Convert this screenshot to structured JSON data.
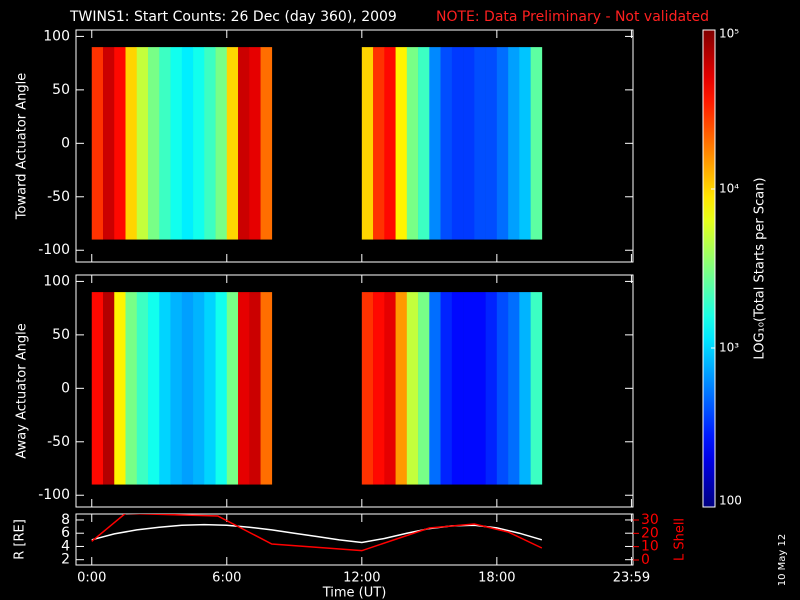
{
  "title": "TWINS1: Start Counts: 26 Dec (day 360), 2009",
  "note": "NOTE: Data Preliminary - Not validated",
  "footer_date": "10 May 12",
  "colorbar": {
    "label": "LOG₁₀(Total Starts per Scan)",
    "zlim": [
      100,
      100000
    ],
    "log": true,
    "colormap": "jet",
    "zticks": [
      {
        "value": 100000,
        "label": "10⁵"
      },
      {
        "value": 10000,
        "label": "10⁴"
      },
      {
        "value": 1000,
        "label": "10³"
      },
      100
    ]
  },
  "chart_data": [
    {
      "type": "heatmap",
      "ylabel": "Toward Actuator Angle",
      "xlim": [
        -0.7,
        24.05
      ],
      "ylim": [
        -111,
        106
      ],
      "yticks": [
        -100,
        -50,
        0,
        50,
        100
      ],
      "angle_range": [
        -90,
        90
      ],
      "segments": [
        {
          "start": 0,
          "end": 8,
          "values": [
            30000,
            60000,
            40000,
            10000,
            5000,
            3000,
            2000,
            1500,
            1200,
            1500,
            2000,
            3000,
            10000,
            60000,
            50000,
            20000
          ]
        },
        {
          "start": 12,
          "end": 20,
          "values": [
            10000,
            30000,
            40000,
            8000,
            3000,
            2000,
            600,
            400,
            350,
            350,
            400,
            400,
            500,
            700,
            900,
            2500
          ]
        }
      ]
    },
    {
      "type": "heatmap",
      "ylabel": "Away Actuator Angle",
      "xlim": [
        -0.7,
        24.05
      ],
      "ylim": [
        -111,
        106
      ],
      "yticks": [
        -100,
        -50,
        0,
        50,
        100
      ],
      "angle_range": [
        -90,
        90
      ],
      "segments": [
        {
          "start": 0,
          "end": 8,
          "values": [
            40000,
            70000,
            8000,
            3000,
            2000,
            1500,
            1000,
            800,
            700,
            800,
            1000,
            1500,
            3000,
            50000,
            60000,
            20000
          ]
        },
        {
          "start": 12,
          "end": 20,
          "values": [
            30000,
            40000,
            50000,
            15000,
            5000,
            3000,
            500,
            300,
            250,
            250,
            250,
            300,
            400,
            500,
            800,
            2000
          ]
        }
      ]
    },
    {
      "type": "line",
      "xlabel": "Time (UT)",
      "ylabel": "R [RE]",
      "y2label": "L Shell",
      "xlim": [
        -0.7,
        24.05
      ],
      "ylim": [
        1.2,
        8.9
      ],
      "y2lim": [
        -3.75,
        34.5
      ],
      "xticks": [
        {
          "value": 0,
          "label": "0:00"
        },
        {
          "value": 6,
          "label": "6:00"
        },
        {
          "value": 12,
          "label": "12:00"
        },
        {
          "value": 18,
          "label": "18:00"
        },
        {
          "value": 23.98,
          "label": "23:59"
        }
      ],
      "yticks": [
        2,
        4,
        6,
        8
      ],
      "y2ticks": [
        0,
        10,
        20,
        30
      ],
      "series": [
        {
          "color": "#ffffff",
          "x": [
            0,
            1,
            2,
            3,
            4,
            5,
            6,
            7,
            8,
            9,
            10,
            11,
            12,
            13,
            14,
            15,
            16,
            17,
            18,
            19,
            20
          ],
          "values": [
            5.0,
            5.9,
            6.5,
            6.9,
            7.2,
            7.3,
            7.2,
            6.9,
            6.5,
            6.0,
            5.5,
            5.0,
            4.6,
            5.2,
            6.0,
            6.7,
            7.1,
            7.2,
            6.8,
            6.0,
            5.0
          ]
        },
        {
          "color": "#ff0000",
          "axis": "y2",
          "x": [
            0,
            1.5,
            5.6,
            8,
            12,
            15,
            17,
            18.5,
            20
          ],
          "values": [
            14,
            35,
            33,
            12,
            7,
            24,
            27,
            21,
            9
          ]
        }
      ]
    }
  ]
}
